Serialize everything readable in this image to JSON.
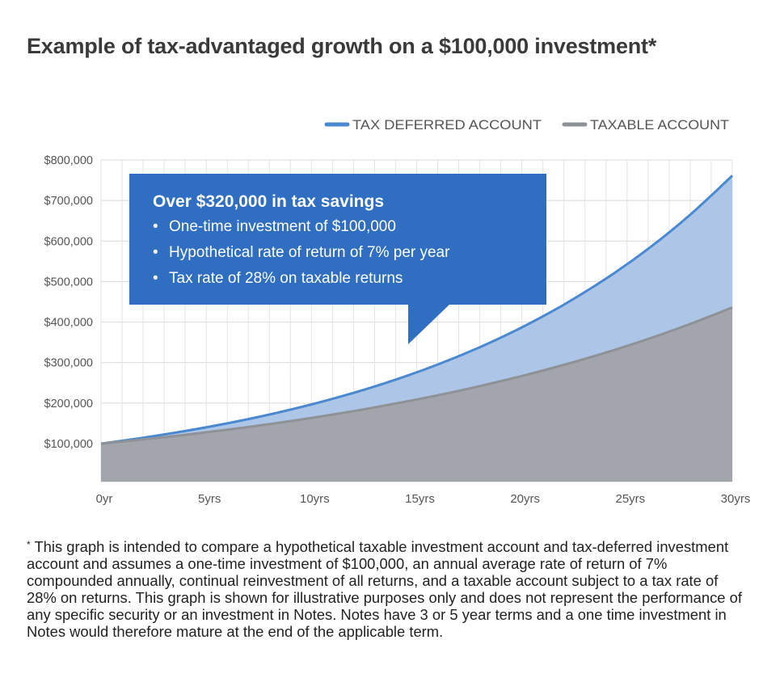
{
  "title": "Example of tax-advantaged growth on a $100,000 investment*",
  "callout": {
    "heading": "Over $320,000 in tax savings",
    "bullets": [
      "One-time investment of $100,000",
      "Hypothetical rate of return of 7% per year",
      "Tax rate of 28% on taxable returns"
    ]
  },
  "footnote": {
    "marker": "*",
    "text": "This graph is intended to compare a hypothetical taxable investment account and tax-deferred investment account and assumes a one-time investment of $100,000, an annual average rate of return of 7% compounded annually, continual reinvestment of all returns, and a taxable account subject to a tax rate of 28% on returns. This graph is shown for illustrative purposes only and does not represent the performance of any specific security or an investment in Notes. Notes have 3 or 5 year terms and a one time investment in Notes would therefore mature at the end of the applicable term."
  },
  "chart_data": {
    "type": "area",
    "title": "Example of tax-advantaged growth on a $100,000 investment*",
    "xlabel": "",
    "ylabel": "",
    "x_tick_labels": [
      "0yr",
      "5yrs",
      "10yrs",
      "15yrs",
      "20yrs",
      "25yrs",
      "30yrs"
    ],
    "x_tick_values": [
      0,
      5,
      10,
      15,
      20,
      25,
      30
    ],
    "y_tick_labels": [
      "$100,000",
      "$200,000",
      "$300,000",
      "$400,000",
      "$500,000",
      "$600,000",
      "$700,000",
      "$800,000"
    ],
    "y_tick_values": [
      100000,
      200000,
      300000,
      400000,
      500000,
      600000,
      700000,
      800000
    ],
    "xlim": [
      0,
      30
    ],
    "ylim": [
      0,
      800000
    ],
    "grid": true,
    "legend": "top-right",
    "x": [
      0,
      2,
      4,
      6,
      8,
      10,
      12,
      14,
      16,
      18,
      20,
      22,
      24,
      26,
      28,
      30
    ],
    "series": [
      {
        "name": "TAX DEFERRED ACCOUNT",
        "color": "#4a88d0",
        "fill": "#a9c3e6",
        "values": [
          100000,
          114490,
          131080,
          150070,
          171820,
          196720,
          225220,
          257850,
          295220,
          337990,
          386970,
          443040,
          507240,
          580740,
          664890,
          761230
        ]
      },
      {
        "name": "TAXABLE ACCOUNT",
        "color": "#8e9196",
        "fill": "#a2a5ab",
        "values": [
          100000,
          110320,
          121700,
          134250,
          148100,
          163380,
          180240,
          198830,
          219340,
          241970,
          266930,
          294470,
          324850,
          358360,
          395330,
          436120
        ]
      }
    ]
  }
}
